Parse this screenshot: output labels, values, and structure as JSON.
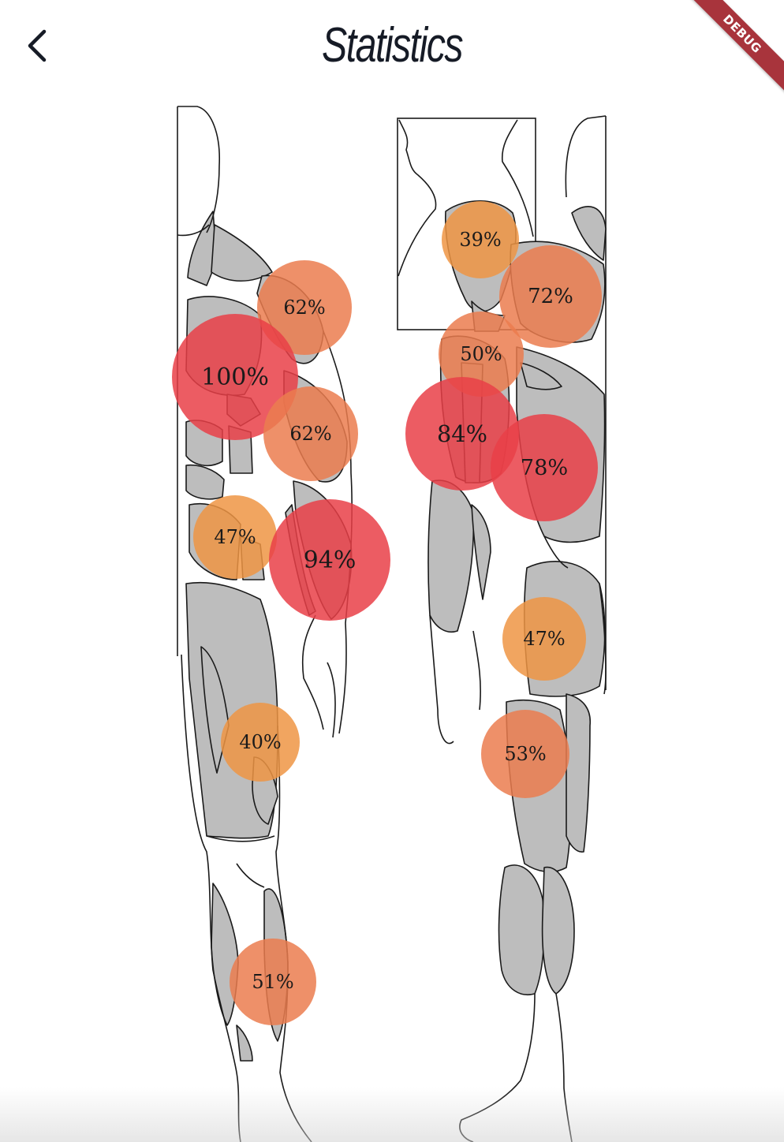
{
  "app_bar": {
    "title": "Statistics",
    "back_icon": "chevron-left-icon"
  },
  "debug_banner": "DEBUG",
  "colors": {
    "muscle_fill": "#bdbdbd",
    "outline": "#1a1a1a",
    "low": "#ef9544",
    "mid": "#eb7c4f",
    "high": "#e94048"
  },
  "hotspots": [
    {
      "id": "front-shoulder",
      "label": "62%",
      "value": 62
    },
    {
      "id": "front-chest",
      "label": "100%",
      "value": 100
    },
    {
      "id": "front-biceps",
      "label": "62%",
      "value": 62
    },
    {
      "id": "front-abs",
      "label": "47%",
      "value": 47
    },
    {
      "id": "front-forearm",
      "label": "94%",
      "value": 94
    },
    {
      "id": "front-quads",
      "label": "40%",
      "value": 40
    },
    {
      "id": "front-calves",
      "label": "51%",
      "value": 51
    },
    {
      "id": "back-neck",
      "label": "39%",
      "value": 39
    },
    {
      "id": "back-shoulder",
      "label": "72%",
      "value": 72
    },
    {
      "id": "back-triceps-upper",
      "label": "50%",
      "value": 50
    },
    {
      "id": "back-triceps",
      "label": "84%",
      "value": 84
    },
    {
      "id": "back-lats",
      "label": "78%",
      "value": 78
    },
    {
      "id": "back-glutes",
      "label": "47%",
      "value": 47
    },
    {
      "id": "back-hamstrings",
      "label": "53%",
      "value": 53
    }
  ]
}
